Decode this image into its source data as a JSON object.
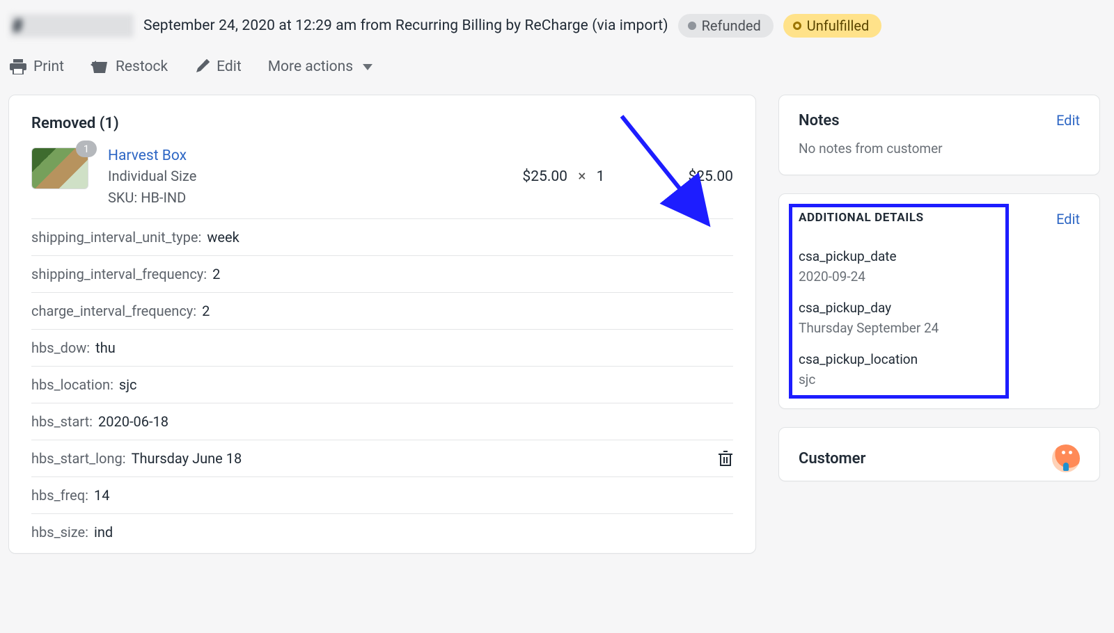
{
  "header": {
    "order_number_prefix": "#",
    "meta_text": "September 24, 2020 at 12:29 am from Recurring Billing by ReCharge (via import)",
    "badge_refunded": "Refunded",
    "badge_unfulfilled": "Unfulfilled"
  },
  "actions": {
    "print": "Print",
    "restock": "Restock",
    "edit": "Edit",
    "more": "More actions"
  },
  "removed": {
    "title": "Removed (1)",
    "thumb_badge": "1",
    "item_title": "Harvest Box",
    "item_variant": "Individual Size",
    "item_sku_line": "SKU: HB-IND",
    "unit_price": "$25.00",
    "qty_sep": "×",
    "qty": "1",
    "line_total": "$25.00",
    "props": [
      {
        "key": "shipping_interval_unit_type:",
        "val": "week"
      },
      {
        "key": "shipping_interval_frequency:",
        "val": "2"
      },
      {
        "key": "charge_interval_frequency:",
        "val": "2"
      },
      {
        "key": "hbs_dow:",
        "val": "thu"
      },
      {
        "key": "hbs_location:",
        "val": "sjc"
      },
      {
        "key": "hbs_start:",
        "val": "2020-06-18"
      },
      {
        "key": "hbs_start_long:",
        "val": "Thursday June 18"
      },
      {
        "key": "hbs_freq:",
        "val": "14"
      },
      {
        "key": "hbs_size:",
        "val": "ind"
      }
    ]
  },
  "notes": {
    "title": "Notes",
    "edit": "Edit",
    "body": "No notes from customer"
  },
  "details": {
    "title": "ADDITIONAL DETAILS",
    "edit": "Edit",
    "items": [
      {
        "key": "csa_pickup_date",
        "val": "2020-09-24"
      },
      {
        "key": "csa_pickup_day",
        "val": "Thursday September 24"
      },
      {
        "key": "csa_pickup_location",
        "val": "sjc"
      }
    ]
  },
  "customer": {
    "title": "Customer"
  },
  "annotations": {
    "highlight_color": "#1d1dff",
    "arrow_color": "#1d1dff"
  }
}
